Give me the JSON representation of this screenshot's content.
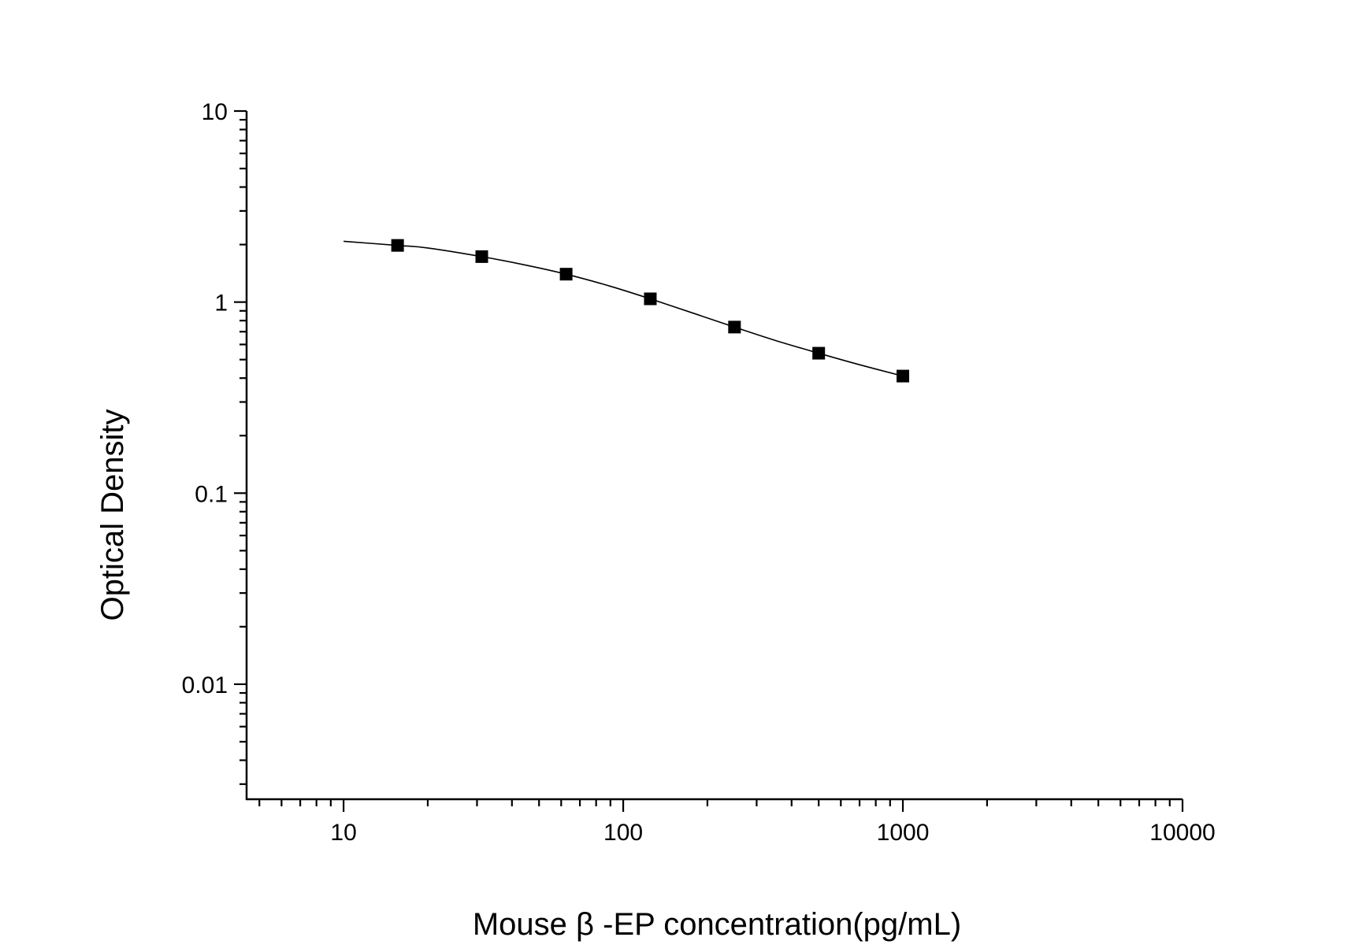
{
  "chart_data": {
    "type": "scatter",
    "title": "",
    "xlabel": "Mouse β -EP concentration(pg/mL)",
    "ylabel": "Optical Density",
    "xscale": "log",
    "yscale": "log",
    "xlim": [
      4.5,
      10000
    ],
    "ylim": [
      0.0025,
      10
    ],
    "x_ticks": [
      {
        "value": 10,
        "label": "10"
      },
      {
        "value": 100,
        "label": "100"
      },
      {
        "value": 1000,
        "label": "1000"
      },
      {
        "value": 10000,
        "label": "10000"
      }
    ],
    "y_ticks": [
      {
        "value": 10,
        "label": "10"
      },
      {
        "value": 1,
        "label": "1"
      },
      {
        "value": 0.1,
        "label": "0.1"
      },
      {
        "value": 0.01,
        "label": "0.01"
      }
    ],
    "grid": false,
    "legend": "none",
    "series": [
      {
        "kind": "points",
        "marker": "square",
        "color": "#000000",
        "x": [
          15.6,
          31.2,
          62.5,
          125,
          250,
          500,
          1000
        ],
        "y": [
          1.98,
          1.73,
          1.4,
          1.04,
          0.74,
          0.54,
          0.41
        ]
      },
      {
        "kind": "fit-curve",
        "color": "#000000",
        "x": [
          10,
          15.6,
          20,
          31.2,
          45,
          62.5,
          90,
          125,
          180,
          250,
          350,
          500,
          700,
          1000
        ],
        "y": [
          2.08,
          1.98,
          1.92,
          1.73,
          1.56,
          1.4,
          1.21,
          1.04,
          0.87,
          0.74,
          0.63,
          0.54,
          0.47,
          0.41
        ]
      }
    ]
  }
}
